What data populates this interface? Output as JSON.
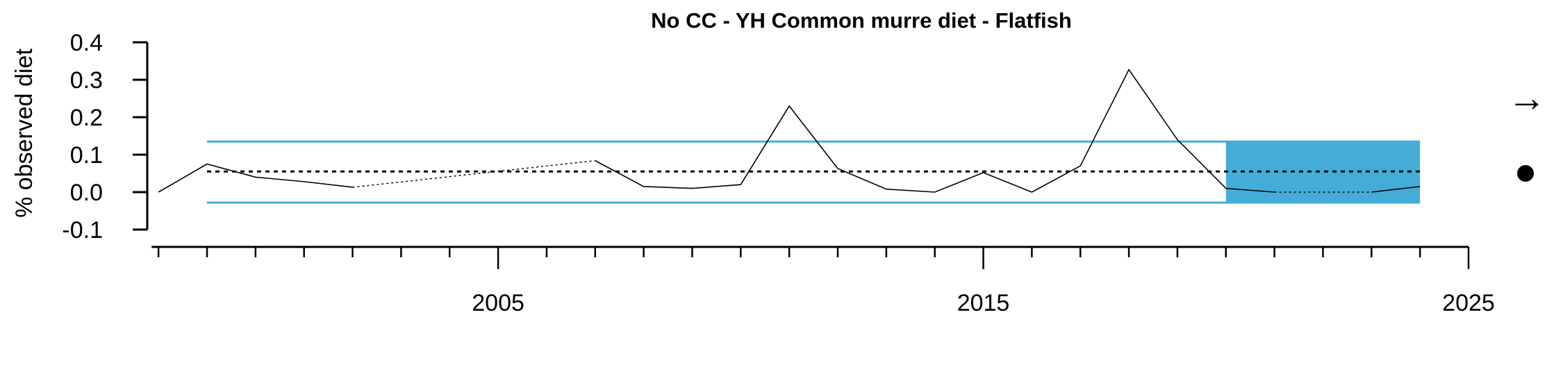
{
  "chart_data": {
    "type": "line",
    "title": "No CC - YH Common murre diet - Flatfish",
    "ylabel": "% observed diet",
    "xlabel": "",
    "xlim": [
      1999,
      2025
    ],
    "ylim": [
      -0.1,
      0.4
    ],
    "xticks_major": [
      2005,
      2015,
      2025
    ],
    "xtick_labels": [
      "2005",
      "2015",
      "2025"
    ],
    "yticks": [
      -0.1,
      0.0,
      0.1,
      0.2,
      0.3,
      0.4
    ],
    "ytick_labels": [
      "-0.1",
      "0.0",
      "0.1",
      "0.2",
      "0.3",
      "0.4"
    ],
    "x_minor_ticks": [
      1998,
      1999,
      2000,
      2001,
      2002,
      2003,
      2004,
      2005,
      2006,
      2007,
      2008,
      2009,
      2010,
      2011,
      2012,
      2013,
      2014,
      2015,
      2016,
      2017,
      2018,
      2019,
      2020,
      2021,
      2022,
      2023,
      2024,
      2025
    ],
    "series": [
      {
        "x": [
          1998,
          1999,
          2000,
          2001,
          2002,
          2003,
          2004,
          2005,
          2006,
          2007,
          2008,
          2009,
          2010,
          2011,
          2012,
          2013,
          2014,
          2015,
          2016,
          2017,
          2018,
          2019,
          2020,
          2021,
          2022,
          2023,
          2024
        ],
        "values": [
          0.0,
          0.075,
          0.04,
          0.028,
          0.013,
          null,
          null,
          null,
          null,
          0.084,
          0.015,
          0.01,
          0.02,
          0.23,
          0.063,
          0.008,
          0.0,
          0.052,
          0.0,
          0.07,
          0.327,
          0.14,
          0.01,
          0.0,
          null,
          0.0,
          0.015
        ]
      }
    ],
    "dotted_gap_segments": [
      {
        "x": [
          2002,
          2007
        ],
        "values": [
          0.013,
          0.084
        ]
      },
      {
        "x": [
          2021,
          2023
        ],
        "values": [
          0.0,
          0.0
        ]
      }
    ],
    "mean_line": 0.055,
    "sd_lines": [
      0.135,
      -0.028
    ],
    "shaded_region": {
      "x": [
        2020,
        2024
      ],
      "values": [
        -0.028,
        0.135
      ]
    },
    "trend_symbol": "→",
    "status_symbol": "●",
    "colors": {
      "line": "#000000",
      "bands": "#43ADD8",
      "shade": "#43ADD8",
      "axis": "#000000"
    }
  }
}
